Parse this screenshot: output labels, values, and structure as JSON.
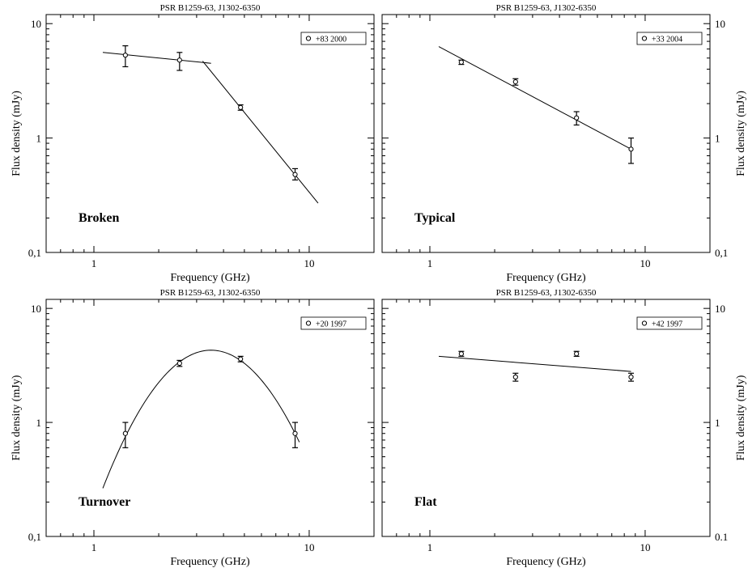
{
  "chart_data": [
    {
      "type": "scatter",
      "title": "PSR B1259-63, J1302-6350",
      "panel_label": "Broken",
      "legend": "+83 2000",
      "xlabel": "Frequency (GHz)",
      "ylabel": "Flux density  (mJy)",
      "x_scale": "log",
      "y_scale": "log",
      "xlim": [
        0.6,
        20
      ],
      "ylim": [
        0.1,
        12
      ],
      "x_ticks": [
        {
          "v": 1,
          "label": "1"
        },
        {
          "v": 10,
          "label": "10"
        }
      ],
      "y_ticks": [
        {
          "v": 0.1,
          "label": "0,1"
        },
        {
          "v": 1,
          "label": "1"
        },
        {
          "v": 10,
          "label": "10"
        }
      ],
      "y_axis_side": "left",
      "points": [
        {
          "x": 1.4,
          "y": 5.3,
          "lo": 4.2,
          "hi": 6.4
        },
        {
          "x": 2.5,
          "y": 4.8,
          "lo": 3.9,
          "hi": 5.6
        },
        {
          "x": 4.8,
          "y": 1.85,
          "lo": 1.75,
          "hi": 1.95
        },
        {
          "x": 8.6,
          "y": 0.48,
          "lo": 0.43,
          "hi": 0.54
        }
      ],
      "fit": {
        "kind": "broken",
        "segments": [
          {
            "x": [
              1.1,
              3.5
            ],
            "y": [
              5.6,
              4.5
            ]
          },
          {
            "x": [
              3.2,
              11
            ],
            "y": [
              4.7,
              0.27
            ]
          }
        ]
      }
    },
    {
      "type": "scatter",
      "title": "PSR B1259-63, J1302-6350",
      "panel_label": "Typical",
      "legend": "+33 2004",
      "xlabel": "Frequency (GHz)",
      "ylabel": "Flux density  (mJy)",
      "x_scale": "log",
      "y_scale": "log",
      "xlim": [
        0.6,
        20
      ],
      "ylim": [
        0.1,
        12
      ],
      "x_ticks": [
        {
          "v": 1,
          "label": "1"
        },
        {
          "v": 10,
          "label": "10"
        }
      ],
      "y_ticks": [
        {
          "v": 0.1,
          "label": "0,1"
        },
        {
          "v": 1,
          "label": "1"
        },
        {
          "v": 10,
          "label": "10"
        }
      ],
      "y_axis_side": "right",
      "points": [
        {
          "x": 1.4,
          "y": 4.6,
          "lo": 4.4,
          "hi": 4.8
        },
        {
          "x": 2.5,
          "y": 3.1,
          "lo": 2.9,
          "hi": 3.3
        },
        {
          "x": 4.8,
          "y": 1.5,
          "lo": 1.3,
          "hi": 1.7
        },
        {
          "x": 8.6,
          "y": 0.8,
          "lo": 0.6,
          "hi": 1.0
        }
      ],
      "fit": {
        "kind": "powerlaw",
        "x": [
          1.1,
          8.6
        ],
        "y": [
          6.3,
          0.8
        ]
      }
    },
    {
      "type": "scatter",
      "title": "PSR B1259-63, J1302-6350",
      "panel_label": "Turnover",
      "legend": "+20 1997",
      "xlabel": "Frequency (GHz)",
      "ylabel": "Flux density  (mJy)",
      "x_scale": "log",
      "y_scale": "log",
      "xlim": [
        0.6,
        20
      ],
      "ylim": [
        0.1,
        12
      ],
      "x_ticks": [
        {
          "v": 1,
          "label": "1"
        },
        {
          "v": 10,
          "label": "10"
        }
      ],
      "y_ticks": [
        {
          "v": 0.1,
          "label": "0,1"
        },
        {
          "v": 1,
          "label": "1"
        },
        {
          "v": 10,
          "label": "10"
        }
      ],
      "y_axis_side": "left",
      "points": [
        {
          "x": 1.4,
          "y": 0.8,
          "lo": 0.6,
          "hi": 1.0
        },
        {
          "x": 2.5,
          "y": 3.3,
          "lo": 3.1,
          "hi": 3.5
        },
        {
          "x": 4.8,
          "y": 3.6,
          "lo": 3.4,
          "hi": 3.8
        },
        {
          "x": 8.6,
          "y": 0.8,
          "lo": 0.6,
          "hi": 1.0
        }
      ],
      "fit": {
        "kind": "turnover",
        "peak_x": 3.5,
        "peak_y": 4.3,
        "x_range": [
          1.1,
          9.0
        ]
      }
    },
    {
      "type": "scatter",
      "title": "PSR B1259-63, J1302-6350",
      "panel_label": "Flat",
      "legend": "+42 1997",
      "xlabel": "Frequency (GHz)",
      "ylabel": "Flux density  (mJy)",
      "x_scale": "log",
      "y_scale": "log",
      "xlim": [
        0.6,
        20
      ],
      "ylim": [
        0.1,
        12
      ],
      "x_ticks": [
        {
          "v": 1,
          "label": "1"
        },
        {
          "v": 10,
          "label": "10"
        }
      ],
      "y_ticks": [
        {
          "v": 0.1,
          "label": "0.1"
        },
        {
          "v": 1,
          "label": "1"
        },
        {
          "v": 10,
          "label": "10"
        }
      ],
      "y_axis_side": "right",
      "points": [
        {
          "x": 1.4,
          "y": 4.0,
          "lo": 3.8,
          "hi": 4.2
        },
        {
          "x": 2.5,
          "y": 2.5,
          "lo": 2.3,
          "hi": 2.7
        },
        {
          "x": 4.8,
          "y": 4.0,
          "lo": 3.8,
          "hi": 4.2
        },
        {
          "x": 8.6,
          "y": 2.5,
          "lo": 2.3,
          "hi": 2.7
        }
      ],
      "fit": {
        "kind": "powerlaw",
        "x": [
          1.1,
          8.6
        ],
        "y": [
          3.8,
          2.8
        ]
      }
    }
  ]
}
